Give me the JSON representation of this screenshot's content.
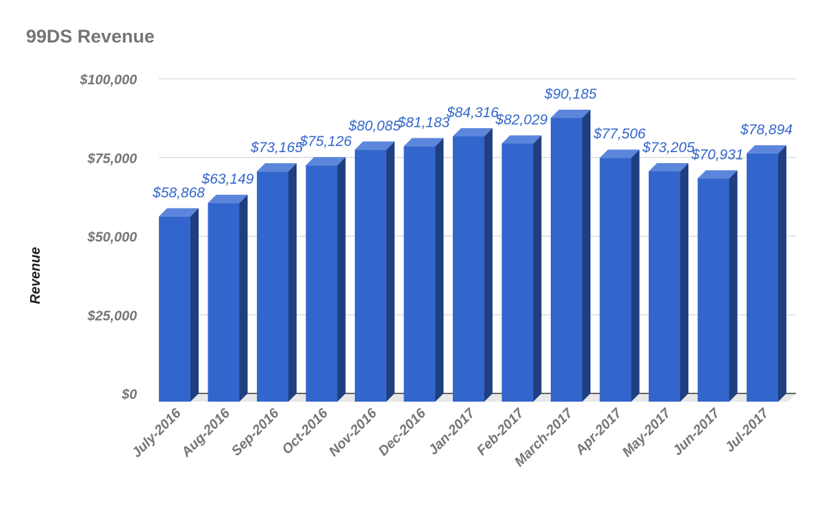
{
  "chart_data": {
    "type": "bar",
    "title": "99DS Revenue",
    "xlabel": "",
    "ylabel": "Revenue",
    "ylim": [
      0,
      100000
    ],
    "y_ticks": [
      {
        "value": 0,
        "label": "$0"
      },
      {
        "value": 25000,
        "label": "$25,000"
      },
      {
        "value": 50000,
        "label": "$50,000"
      },
      {
        "value": 75000,
        "label": "$75,000"
      },
      {
        "value": 100000,
        "label": "$100,000"
      }
    ],
    "categories": [
      "July-2016",
      "Aug-2016",
      "Sep-2016",
      "Oct-2016",
      "Nov-2016",
      "Dec-2016",
      "Jan-2017",
      "Feb-2017",
      "March-2017",
      "Apr-2017",
      "May-2017",
      "Jun-2017",
      "Jul-2017"
    ],
    "values": [
      58868,
      63149,
      73165,
      75126,
      80085,
      81183,
      84316,
      82029,
      90185,
      77506,
      73205,
      70931,
      78894
    ],
    "data_labels": [
      "$58,868",
      "$63,149",
      "$73,165",
      "$75,126",
      "$80,085",
      "$81,183",
      "$84,316",
      "$82,029",
      "$90,185",
      "$77,506",
      "$73,205",
      "$70,931",
      "$78,894"
    ],
    "grid": true,
    "legend": "none",
    "style": "3d",
    "colors": {
      "bar_front": "#3366cc",
      "bar_side": "#1f3f80",
      "bar_top": "#5b86dc",
      "floor": "#e8e8e8",
      "data_label": "#3366cc",
      "axis_text": "#757575",
      "ylabel_text": "#222222",
      "gridline": "#cccccc"
    }
  }
}
